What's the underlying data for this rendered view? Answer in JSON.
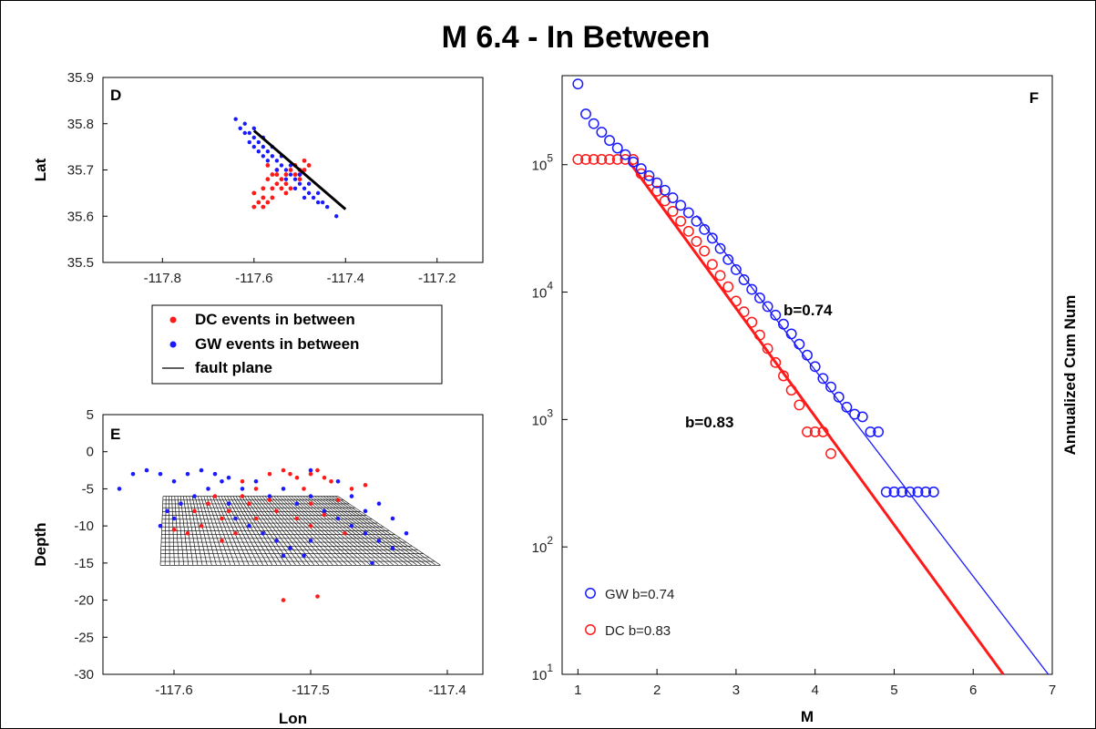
{
  "figure": {
    "title": "M 6.4 - In Between"
  },
  "colors": {
    "gw": "#1a1aff",
    "dc": "#ff1a1a",
    "fault": "#000000"
  },
  "legend": {
    "items": [
      {
        "label": "DC events in between",
        "marker": "red-dot"
      },
      {
        "label": "GW events in between",
        "marker": "blue-dot"
      },
      {
        "label": "fault plane",
        "marker": "black-line"
      }
    ]
  },
  "chart_data": [
    {
      "panel": "D",
      "type": "scatter",
      "xlabel": "",
      "ylabel": "Lat",
      "xlim": [
        -117.93,
        -117.1
      ],
      "ylim": [
        35.5,
        35.9
      ],
      "xticks": [
        -117.8,
        -117.6,
        -117.4,
        -117.2
      ],
      "yticks": [
        35.5,
        35.6,
        35.7,
        35.8,
        35.9
      ],
      "series": [
        {
          "name": "DC events in between",
          "points": [
            [
              -117.58,
              35.64
            ],
            [
              -117.57,
              35.63
            ],
            [
              -117.56,
              35.66
            ],
            [
              -117.55,
              35.67
            ],
            [
              -117.54,
              35.68
            ],
            [
              -117.53,
              35.69
            ],
            [
              -117.52,
              35.7
            ],
            [
              -117.51,
              35.71
            ],
            [
              -117.5,
              35.7
            ],
            [
              -117.49,
              35.7
            ],
            [
              -117.48,
              35.71
            ],
            [
              -117.5,
              35.68
            ],
            [
              -117.52,
              35.66
            ],
            [
              -117.53,
              35.65
            ],
            [
              -117.56,
              35.64
            ],
            [
              -117.59,
              35.63
            ],
            [
              -117.6,
              35.62
            ],
            [
              -117.58,
              35.62
            ],
            [
              -117.55,
              35.69
            ],
            [
              -117.57,
              35.68
            ],
            [
              -117.54,
              35.66
            ],
            [
              -117.51,
              35.69
            ],
            [
              -117.6,
              35.65
            ],
            [
              -117.56,
              35.69
            ],
            [
              -117.57,
              35.71
            ],
            [
              -117.55,
              35.7
            ],
            [
              -117.58,
              35.66
            ],
            [
              -117.53,
              35.67
            ],
            [
              -117.49,
              35.72
            ],
            [
              -117.5,
              35.69
            ]
          ]
        },
        {
          "name": "GW events in between",
          "points": [
            [
              -117.64,
              35.81
            ],
            [
              -117.62,
              35.8
            ],
            [
              -117.61,
              35.78
            ],
            [
              -117.6,
              35.77
            ],
            [
              -117.59,
              35.76
            ],
            [
              -117.58,
              35.75
            ],
            [
              -117.57,
              35.74
            ],
            [
              -117.56,
              35.73
            ],
            [
              -117.55,
              35.72
            ],
            [
              -117.54,
              35.71
            ],
            [
              -117.53,
              35.7
            ],
            [
              -117.52,
              35.69
            ],
            [
              -117.51,
              35.68
            ],
            [
              -117.5,
              35.67
            ],
            [
              -117.49,
              35.66
            ],
            [
              -117.48,
              35.65
            ],
            [
              -117.47,
              35.64
            ],
            [
              -117.46,
              35.63
            ],
            [
              -117.45,
              35.63
            ],
            [
              -117.44,
              35.62
            ],
            [
              -117.42,
              35.6
            ],
            [
              -117.6,
              35.79
            ],
            [
              -117.58,
              35.77
            ],
            [
              -117.56,
              35.75
            ],
            [
              -117.54,
              35.73
            ],
            [
              -117.52,
              35.71
            ],
            [
              -117.5,
              35.69
            ],
            [
              -117.48,
              35.67
            ],
            [
              -117.46,
              35.65
            ],
            [
              -117.63,
              35.79
            ],
            [
              -117.61,
              35.76
            ],
            [
              -117.59,
              35.74
            ],
            [
              -117.57,
              35.72
            ],
            [
              -117.55,
              35.7
            ],
            [
              -117.53,
              35.68
            ],
            [
              -117.51,
              35.66
            ],
            [
              -117.49,
              35.64
            ],
            [
              -117.62,
              35.78
            ],
            [
              -117.6,
              35.75
            ],
            [
              -117.58,
              35.73
            ]
          ]
        }
      ],
      "fault_line": [
        [
          -117.6,
          35.785
        ],
        [
          -117.4,
          35.615
        ]
      ]
    },
    {
      "panel": "E",
      "type": "scatter",
      "xlabel": "Lon",
      "ylabel": "Depth",
      "xlim": [
        -117.652,
        -117.374
      ],
      "ylim": [
        -30,
        5
      ],
      "xticks": [
        -117.6,
        -117.5,
        -117.4
      ],
      "yticks": [
        5,
        0,
        -5,
        -10,
        -15,
        -20,
        -25,
        -30
      ],
      "fault_plane": {
        "corners": [
          [
            -117.608,
            -6
          ],
          [
            -117.48,
            -6
          ],
          [
            -117.405,
            -15.3
          ],
          [
            -117.61,
            -15.3
          ]
        ],
        "grid_columns": 60,
        "grid_rows": 18
      },
      "series": [
        {
          "name": "DC events in between",
          "points": [
            [
              -117.52,
              -2.5
            ],
            [
              -117.515,
              -3
            ],
            [
              -117.51,
              -3.5
            ],
            [
              -117.5,
              -3
            ],
            [
              -117.53,
              -3
            ],
            [
              -117.495,
              -2.5
            ],
            [
              -117.49,
              -3.5
            ],
            [
              -117.485,
              -4
            ],
            [
              -117.54,
              -5
            ],
            [
              -117.55,
              -6
            ],
            [
              -117.545,
              -7
            ],
            [
              -117.56,
              -8
            ],
            [
              -117.565,
              -9
            ],
            [
              -117.58,
              -10
            ],
            [
              -117.59,
              -11
            ],
            [
              -117.6,
              -10.5
            ],
            [
              -117.55,
              -4
            ],
            [
              -117.505,
              -5
            ],
            [
              -117.5,
              -7
            ],
            [
              -117.48,
              -6.5
            ],
            [
              -117.47,
              -5
            ],
            [
              -117.575,
              -7
            ],
            [
              -117.565,
              -12
            ],
            [
              -117.555,
              -11
            ],
            [
              -117.525,
              -8
            ],
            [
              -117.51,
              -9
            ],
            [
              -117.5,
              -10
            ],
            [
              -117.52,
              -20
            ],
            [
              -117.495,
              -19.5
            ],
            [
              -117.53,
              -6.5
            ],
            [
              -117.54,
              -9
            ],
            [
              -117.57,
              -6
            ],
            [
              -117.585,
              -8
            ],
            [
              -117.49,
              -8.5
            ],
            [
              -117.475,
              -11
            ],
            [
              -117.46,
              -4.5
            ]
          ]
        },
        {
          "name": "GW events in between",
          "points": [
            [
              -117.64,
              -5
            ],
            [
              -117.63,
              -3
            ],
            [
              -117.62,
              -2.5
            ],
            [
              -117.61,
              -3
            ],
            [
              -117.6,
              -4
            ],
            [
              -117.59,
              -3
            ],
            [
              -117.58,
              -2.5
            ],
            [
              -117.57,
              -3
            ],
            [
              -117.56,
              -3.5
            ],
            [
              -117.55,
              -5
            ],
            [
              -117.54,
              -4
            ],
            [
              -117.53,
              -6
            ],
            [
              -117.52,
              -5
            ],
            [
              -117.51,
              -7
            ],
            [
              -117.5,
              -6
            ],
            [
              -117.49,
              -8
            ],
            [
              -117.48,
              -9
            ],
            [
              -117.47,
              -10
            ],
            [
              -117.46,
              -11
            ],
            [
              -117.45,
              -12
            ],
            [
              -117.44,
              -13
            ],
            [
              -117.43,
              -11
            ],
            [
              -117.44,
              -9
            ],
            [
              -117.45,
              -7
            ],
            [
              -117.5,
              -12
            ],
            [
              -117.52,
              -14
            ],
            [
              -117.56,
              -7
            ],
            [
              -117.575,
              -5
            ],
            [
              -117.585,
              -6
            ],
            [
              -117.595,
              -7
            ],
            [
              -117.6,
              -9
            ],
            [
              -117.61,
              -10
            ],
            [
              -117.605,
              -8
            ],
            [
              -117.565,
              -4
            ],
            [
              -117.555,
              -9
            ],
            [
              -117.545,
              -10
            ],
            [
              -117.535,
              -11
            ],
            [
              -117.525,
              -12
            ],
            [
              -117.515,
              -13
            ],
            [
              -117.505,
              -14
            ],
            [
              -117.48,
              -4
            ],
            [
              -117.47,
              -6
            ],
            [
              -117.46,
              -8
            ],
            [
              -117.455,
              -15
            ],
            [
              -117.5,
              -2.5
            ]
          ]
        }
      ]
    },
    {
      "panel": "F",
      "type": "scatter",
      "xlabel": "M",
      "ylabel": "Annualized Cum Num",
      "xlim": [
        0.8,
        7
      ],
      "ylim": [
        10,
        500000
      ],
      "yscale": "log",
      "xticks": [
        1,
        2,
        3,
        4,
        5,
        6,
        7
      ],
      "ytick_exponents": [
        1,
        2,
        3,
        4,
        5
      ],
      "series": [
        {
          "name": "GW",
          "points": [
            [
              1.0,
              430000
            ],
            [
              1.1,
              250000
            ],
            [
              1.2,
              210000
            ],
            [
              1.3,
              180000
            ],
            [
              1.4,
              155000
            ],
            [
              1.5,
              135000
            ],
            [
              1.6,
              120000
            ],
            [
              1.7,
              105000
            ],
            [
              1.8,
              93000
            ],
            [
              1.9,
              82000
            ],
            [
              2.0,
              72000
            ],
            [
              2.1,
              63000
            ],
            [
              2.2,
              55000
            ],
            [
              2.3,
              48000
            ],
            [
              2.4,
              42000
            ],
            [
              2.5,
              36000
            ],
            [
              2.6,
              31000
            ],
            [
              2.7,
              26500
            ],
            [
              2.8,
              22000
            ],
            [
              2.9,
              18000
            ],
            [
              3.0,
              15000
            ],
            [
              3.1,
              12500
            ],
            [
              3.2,
              10500
            ],
            [
              3.3,
              9000
            ],
            [
              3.4,
              7700
            ],
            [
              3.5,
              6600
            ],
            [
              3.6,
              5600
            ],
            [
              3.7,
              4700
            ],
            [
              3.8,
              3900
            ],
            [
              3.9,
              3200
            ],
            [
              4.0,
              2600
            ],
            [
              4.1,
              2100
            ],
            [
              4.2,
              1800
            ],
            [
              4.3,
              1500
            ],
            [
              4.4,
              1250
            ],
            [
              4.5,
              1100
            ],
            [
              4.6,
              1050
            ],
            [
              4.7,
              800
            ],
            [
              4.8,
              800
            ],
            [
              4.9,
              270
            ],
            [
              5.0,
              270
            ],
            [
              5.1,
              270
            ],
            [
              5.2,
              270
            ],
            [
              5.3,
              270
            ],
            [
              5.4,
              270
            ],
            [
              5.5,
              270
            ]
          ],
          "fit_line": [
            [
              2.5,
              40000
            ],
            [
              6.95,
              10
            ]
          ],
          "fit_label": "b=0.74"
        },
        {
          "name": "DC",
          "points": [
            [
              1.0,
              110000
            ],
            [
              1.1,
              110000
            ],
            [
              1.2,
              110000
            ],
            [
              1.3,
              110000
            ],
            [
              1.4,
              110000
            ],
            [
              1.5,
              110000
            ],
            [
              1.6,
              110000
            ],
            [
              1.7,
              110000
            ],
            [
              1.8,
              85000
            ],
            [
              1.9,
              75000
            ],
            [
              2.0,
              62000
            ],
            [
              2.1,
              52000
            ],
            [
              2.2,
              43000
            ],
            [
              2.3,
              36000
            ],
            [
              2.4,
              30000
            ],
            [
              2.5,
              25000
            ],
            [
              2.6,
              21000
            ],
            [
              2.7,
              16500
            ],
            [
              2.8,
              13500
            ],
            [
              2.9,
              11000
            ],
            [
              3.0,
              8500
            ],
            [
              3.1,
              7000
            ],
            [
              3.2,
              5800
            ],
            [
              3.3,
              4600
            ],
            [
              3.4,
              3600
            ],
            [
              3.5,
              2800
            ],
            [
              3.6,
              2200
            ],
            [
              3.7,
              1700
            ],
            [
              3.8,
              1300
            ],
            [
              3.9,
              800
            ],
            [
              4.0,
              800
            ],
            [
              4.1,
              800
            ],
            [
              4.2,
              540
            ]
          ],
          "fit_line": [
            [
              1.65,
              105000
            ],
            [
              6.38,
              10
            ]
          ],
          "fit_label": "b=0.83"
        }
      ]
    }
  ]
}
